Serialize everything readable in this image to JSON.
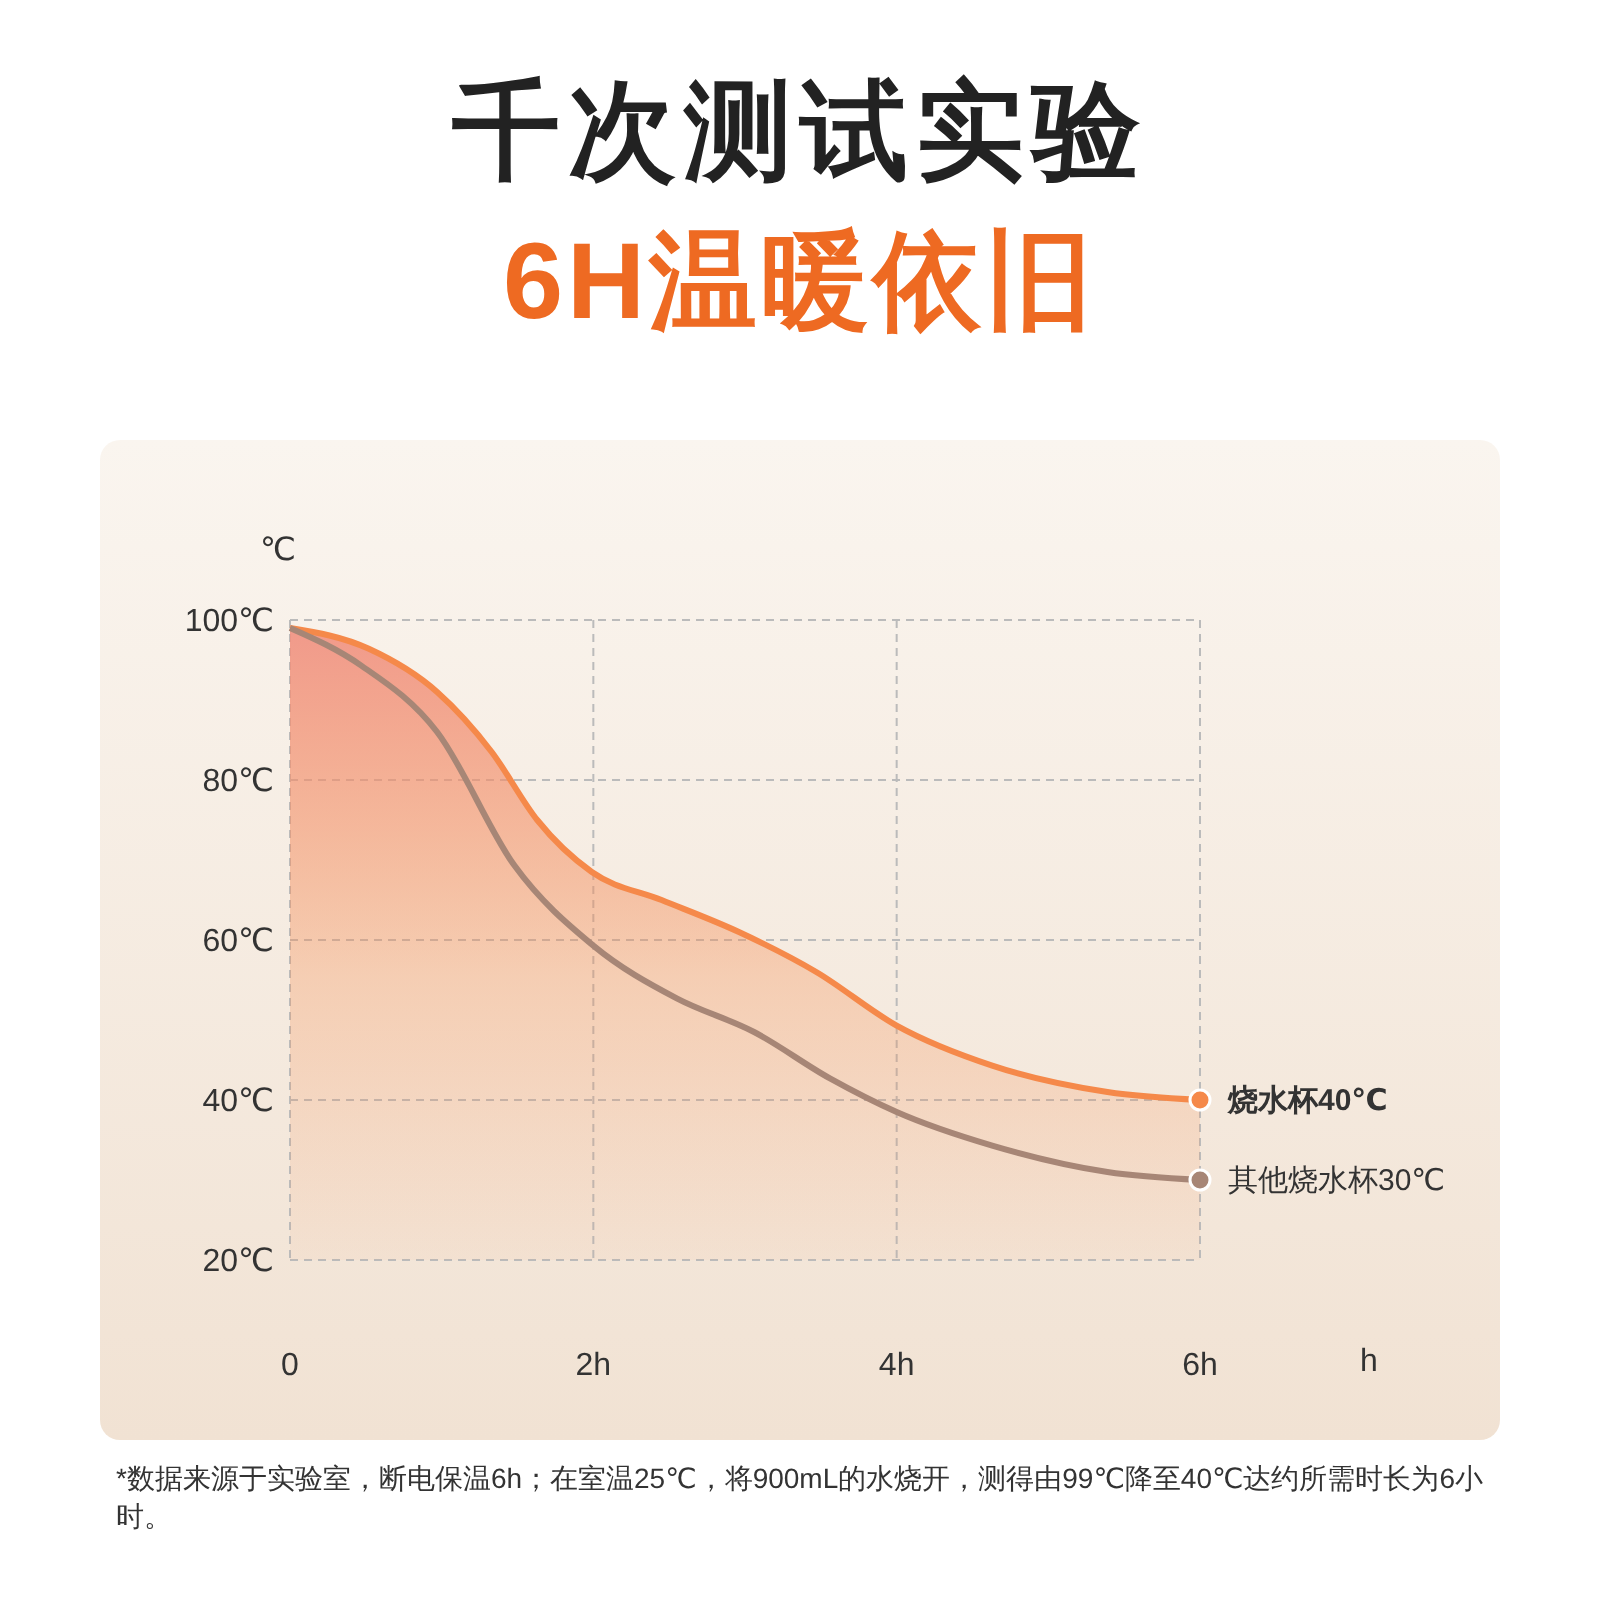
{
  "chart_data": {
    "type": "line",
    "title": "千次测试实验",
    "subtitle": "6H温暖依旧",
    "xlabel": "h",
    "ylabel": "℃",
    "xlim": [
      0,
      6
    ],
    "xticks": [
      0,
      {
        "value": 2,
        "label": "2h"
      },
      {
        "value": 4,
        "label": "4h"
      },
      {
        "value": 6,
        "label": "6h"
      }
    ],
    "ylim": [
      20,
      100
    ],
    "yticks": [
      {
        "value": 20,
        "label": "20℃"
      },
      {
        "value": 40,
        "label": "40℃"
      },
      {
        "value": 60,
        "label": "60℃"
      },
      {
        "value": 80,
        "label": "80℃"
      },
      {
        "value": 100,
        "label": "100℃"
      }
    ],
    "grid": true,
    "marker": "none",
    "line_style": "solid",
    "legend": false,
    "series": [
      {
        "name": "烧水杯40℃",
        "type": "area",
        "color": "#f5894a",
        "x": [
          0,
          0.52,
          0.97,
          1.33,
          1.63,
          1.99,
          2.45,
          2.96,
          3.47,
          4.0,
          4.63,
          5.39,
          6
        ],
        "values": [
          99,
          96.4,
          91,
          83.5,
          75,
          68.5,
          65,
          61,
          56,
          49.3,
          44.3,
          41,
          40
        ]
      },
      {
        "name": "其他烧水杯30℃",
        "type": "line",
        "color": "#a78676",
        "x": [
          0,
          0.47,
          0.97,
          1.48,
          2.0,
          2.55,
          3.06,
          3.56,
          4.0,
          4.63,
          5.39,
          6
        ],
        "values": [
          99,
          94.3,
          86,
          69.3,
          59.3,
          52.7,
          48.5,
          42.7,
          38.5,
          34.3,
          31,
          30
        ]
      }
    ],
    "annotations": [
      "*数据来源于实验室，断电保温6h；在室温25℃，将900mL的水烧开，测得由99℃降至40℃达约所需时长为6小时。"
    ]
  }
}
